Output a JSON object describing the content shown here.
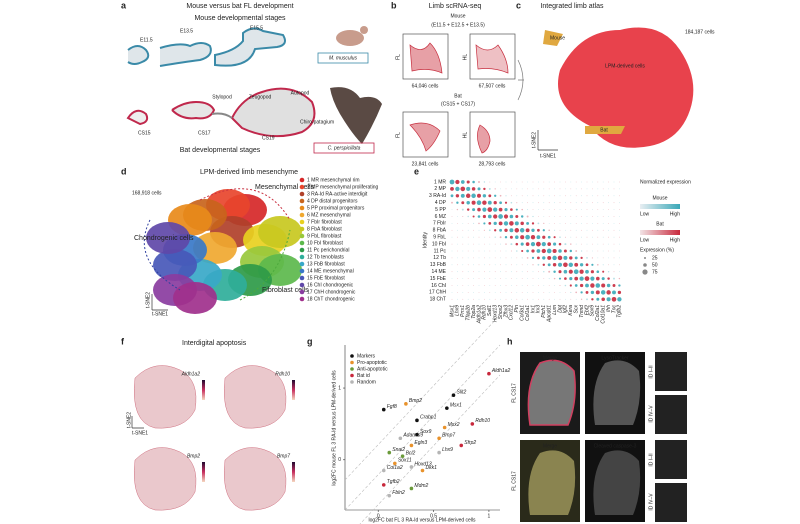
{
  "a": {
    "label": "a",
    "title": "Mouse versus bat FL development",
    "mouse_title": "Mouse developmental stages",
    "mouse_stages": [
      "E11.5",
      "E13.5",
      "E15.5"
    ],
    "segments": [
      "Stylopod",
      "Zeugopod",
      "Autopod"
    ],
    "bat_stages": [
      "CS15",
      "CS17",
      "CS19"
    ],
    "chiropatagium": "Chiro-patagium",
    "bat_title": "Bat developmental stages",
    "species": [
      "M. musculus",
      "C. perspicillata"
    ]
  },
  "b": {
    "label": "b",
    "title": "Limb scRNA-seq",
    "mouse": "Mouse",
    "mouse_stages": "(E11.5 + E12.5 + E13.5)",
    "bat": "Bat",
    "bat_stages": "(CS15 + CS17)",
    "limbs": [
      "FL",
      "HL",
      "FL",
      "HL"
    ],
    "cells": [
      "64,046 cells",
      "67,507 cells",
      "23,841 cells",
      "28,793 cells"
    ]
  },
  "c": {
    "label": "c",
    "title": "Integrated limb atlas",
    "cells": "184,187 cells",
    "mouse": "Mouse",
    "lpm": "LPM-derived cells",
    "bat": "Bat",
    "y_axis": "t-SNE2",
    "x_axis": "t-SNE1"
  },
  "d": {
    "label": "d",
    "title": "LPM-derived limb mesenchyme",
    "cells": "168,918 cells",
    "groups": [
      "Mesenchymal cells",
      "Chondrogenic cells",
      "Fibroblast cells"
    ],
    "y_axis": "t-SNE2",
    "x_axis": "t-SNE1",
    "clusters": [
      {
        "name": "1 MR mesenchymal rim",
        "color": "#d62728"
      },
      {
        "name": "2 MP mesenchymal proliferating",
        "color": "#e8452c"
      },
      {
        "name": "3 RA-Id RA-active interdigit",
        "color": "#b0402a"
      },
      {
        "name": "4 DP distal progenitors",
        "color": "#c8641c"
      },
      {
        "name": "5 PP proximal progenitors",
        "color": "#e88a1a"
      },
      {
        "name": "6 MZ mesenchymal",
        "color": "#f0a830"
      },
      {
        "name": "7 FbIr fibroblast",
        "color": "#e8d020"
      },
      {
        "name": "8 FbA fibroblast",
        "color": "#c8c820"
      },
      {
        "name": "9 FbL fibroblast",
        "color": "#98c83c"
      },
      {
        "name": "10 FbI fibroblast",
        "color": "#5cb84c"
      },
      {
        "name": "11 Pc perichondrial",
        "color": "#2e9a48"
      },
      {
        "name": "12 Tb tenoblasts",
        "color": "#2fae9a"
      },
      {
        "name": "13 FbB fibroblast",
        "color": "#38a8c8"
      },
      {
        "name": "14 ME mesenchymal",
        "color": "#3878c8"
      },
      {
        "name": "15 FbE fibroblast",
        "color": "#4858b8"
      },
      {
        "name": "16 ChI chondrogenic",
        "color": "#6048a8"
      },
      {
        "name": "17 ChH chondrogenic",
        "color": "#8a3ca0"
      },
      {
        "name": "18 ChT chondrogenic",
        "color": "#a0308c"
      }
    ]
  },
  "e": {
    "label": "e",
    "y_axis": "Identity",
    "identities": [
      "1 MR",
      "2 MP",
      "3 RA-Id",
      "4 DP",
      "5 PP",
      "6 MZ",
      "7 FbIr",
      "8 FbA",
      "9 FbL",
      "10 FbI",
      "11 Pc",
      "12 Tb",
      "13 FbB",
      "14 ME",
      "15 FbE",
      "16 ChI",
      "17 ChH",
      "18 ChT"
    ],
    "genes": [
      "Msx1",
      "Lhx9",
      "Prrx1",
      "Tfap2b",
      "Top2a",
      "Aldh1a2",
      "Rdh10",
      "Sall1",
      "Hoxd13",
      "Shox2",
      "Zfhx3",
      "Cxcl12",
      "Ptn",
      "Col3a1",
      "Col1a1",
      "Irx1",
      "Irx3",
      "Ptch1",
      "Apcdd1",
      "Lum",
      "Dpt",
      "Igf2",
      "Kera",
      "Scx",
      "Tnmd",
      "Ebf2",
      "Sox9",
      "Col2a1",
      "Col10a1",
      "Ihh",
      "Tnc",
      "Tgfb2"
    ],
    "legend_title": "Normalized expression",
    "mouse": "Mouse",
    "bat": "Bat",
    "low": "Low",
    "high": "High",
    "low2": "Low",
    "high2": "High",
    "size_title": "Expression (%)",
    "sizes": [
      "25",
      "50",
      "75"
    ]
  },
  "f": {
    "label": "f",
    "title": "Interdigital apoptosis",
    "genes": [
      "Aldh1a2",
      "Rdh10",
      "Bmp2",
      "Bmp7"
    ],
    "y_axis": "t-SNE2",
    "x_axis": "t-SNE1"
  },
  "g": {
    "label": "g",
    "y_axis": "log2FC mouse FL 3 RA-Id versus LPM-derived cells",
    "x_axis": "log2FC bat FL 3 RA-Id versus LPM-derived cells",
    "xlim": [
      -0.3,
      1.1
    ],
    "ylim": [
      -0.7,
      1.6
    ],
    "xticks": [
      0,
      0.5,
      1
    ],
    "yticks": [
      0,
      1
    ],
    "groups": [
      {
        "name": "Markers",
        "color": "#111111"
      },
      {
        "name": "Pro-apoptotic",
        "color": "#e8922c"
      },
      {
        "name": "Anti-apoptotic",
        "color": "#6a9a3a"
      },
      {
        "name": "Bat id",
        "color": "#c8283c"
      },
      {
        "name": "Random",
        "color": "#b5b5b5"
      }
    ],
    "points": [
      {
        "gene": "Aldh1a2",
        "group": 3,
        "x": 1.0,
        "y": 1.2
      },
      {
        "gene": "Slit2",
        "group": 0,
        "x": 0.68,
        "y": 0.9
      },
      {
        "gene": "Msx1",
        "group": 0,
        "x": 0.62,
        "y": 0.72
      },
      {
        "gene": "Rdh10",
        "group": 3,
        "x": 0.85,
        "y": 0.5
      },
      {
        "gene": "Bmp2",
        "group": 1,
        "x": 0.25,
        "y": 0.78
      },
      {
        "gene": "Fgf8",
        "group": 0,
        "x": 0.05,
        "y": 0.7
      },
      {
        "gene": "Crabp1",
        "group": 0,
        "x": 0.35,
        "y": 0.55
      },
      {
        "gene": "Msx2",
        "group": 1,
        "x": 0.6,
        "y": 0.45
      },
      {
        "gene": "Bmp7",
        "group": 1,
        "x": 0.55,
        "y": 0.3
      },
      {
        "gene": "Sfrp2",
        "group": 3,
        "x": 0.75,
        "y": 0.2
      },
      {
        "gene": "Adamts9",
        "group": 4,
        "x": 0.2,
        "y": 0.3
      },
      {
        "gene": "Sox9",
        "group": 0,
        "x": 0.35,
        "y": 0.35
      },
      {
        "gene": "Egln3",
        "group": 1,
        "x": 0.3,
        "y": 0.2
      },
      {
        "gene": "Snai2",
        "group": 2,
        "x": 0.1,
        "y": 0.1
      },
      {
        "gene": "Bcl2",
        "group": 2,
        "x": 0.22,
        "y": 0.05
      },
      {
        "gene": "Sox11",
        "group": 1,
        "x": 0.15,
        "y": -0.05
      },
      {
        "gene": "Col1a2",
        "group": 4,
        "x": 0.05,
        "y": -0.15
      },
      {
        "gene": "Hoxd13",
        "group": 4,
        "x": 0.3,
        "y": -0.1
      },
      {
        "gene": "Dkk1",
        "group": 1,
        "x": 0.4,
        "y": -0.15
      },
      {
        "gene": "Lhx9",
        "group": 4,
        "x": 0.55,
        "y": 0.1
      },
      {
        "gene": "Tgfb2",
        "group": 3,
        "x": 0.05,
        "y": -0.35
      },
      {
        "gene": "Mdm2",
        "group": 2,
        "x": 0.3,
        "y": -0.4
      },
      {
        "gene": "Fbln2",
        "group": 4,
        "x": 0.1,
        "y": -0.5
      }
    ]
  },
  "h": {
    "label": "h",
    "rows": [
      {
        "merge": "Merge",
        "stain": "LysoTracker",
        "sample": "FL CS17",
        "insets": [
          "ID I–II",
          "ID IV–V"
        ]
      },
      {
        "merge": "Merge",
        "stain": "Cleaved caspase-3",
        "sample": "FL CS17",
        "insets": [
          "ID I–II",
          "ID IV–V"
        ]
      }
    ]
  }
}
